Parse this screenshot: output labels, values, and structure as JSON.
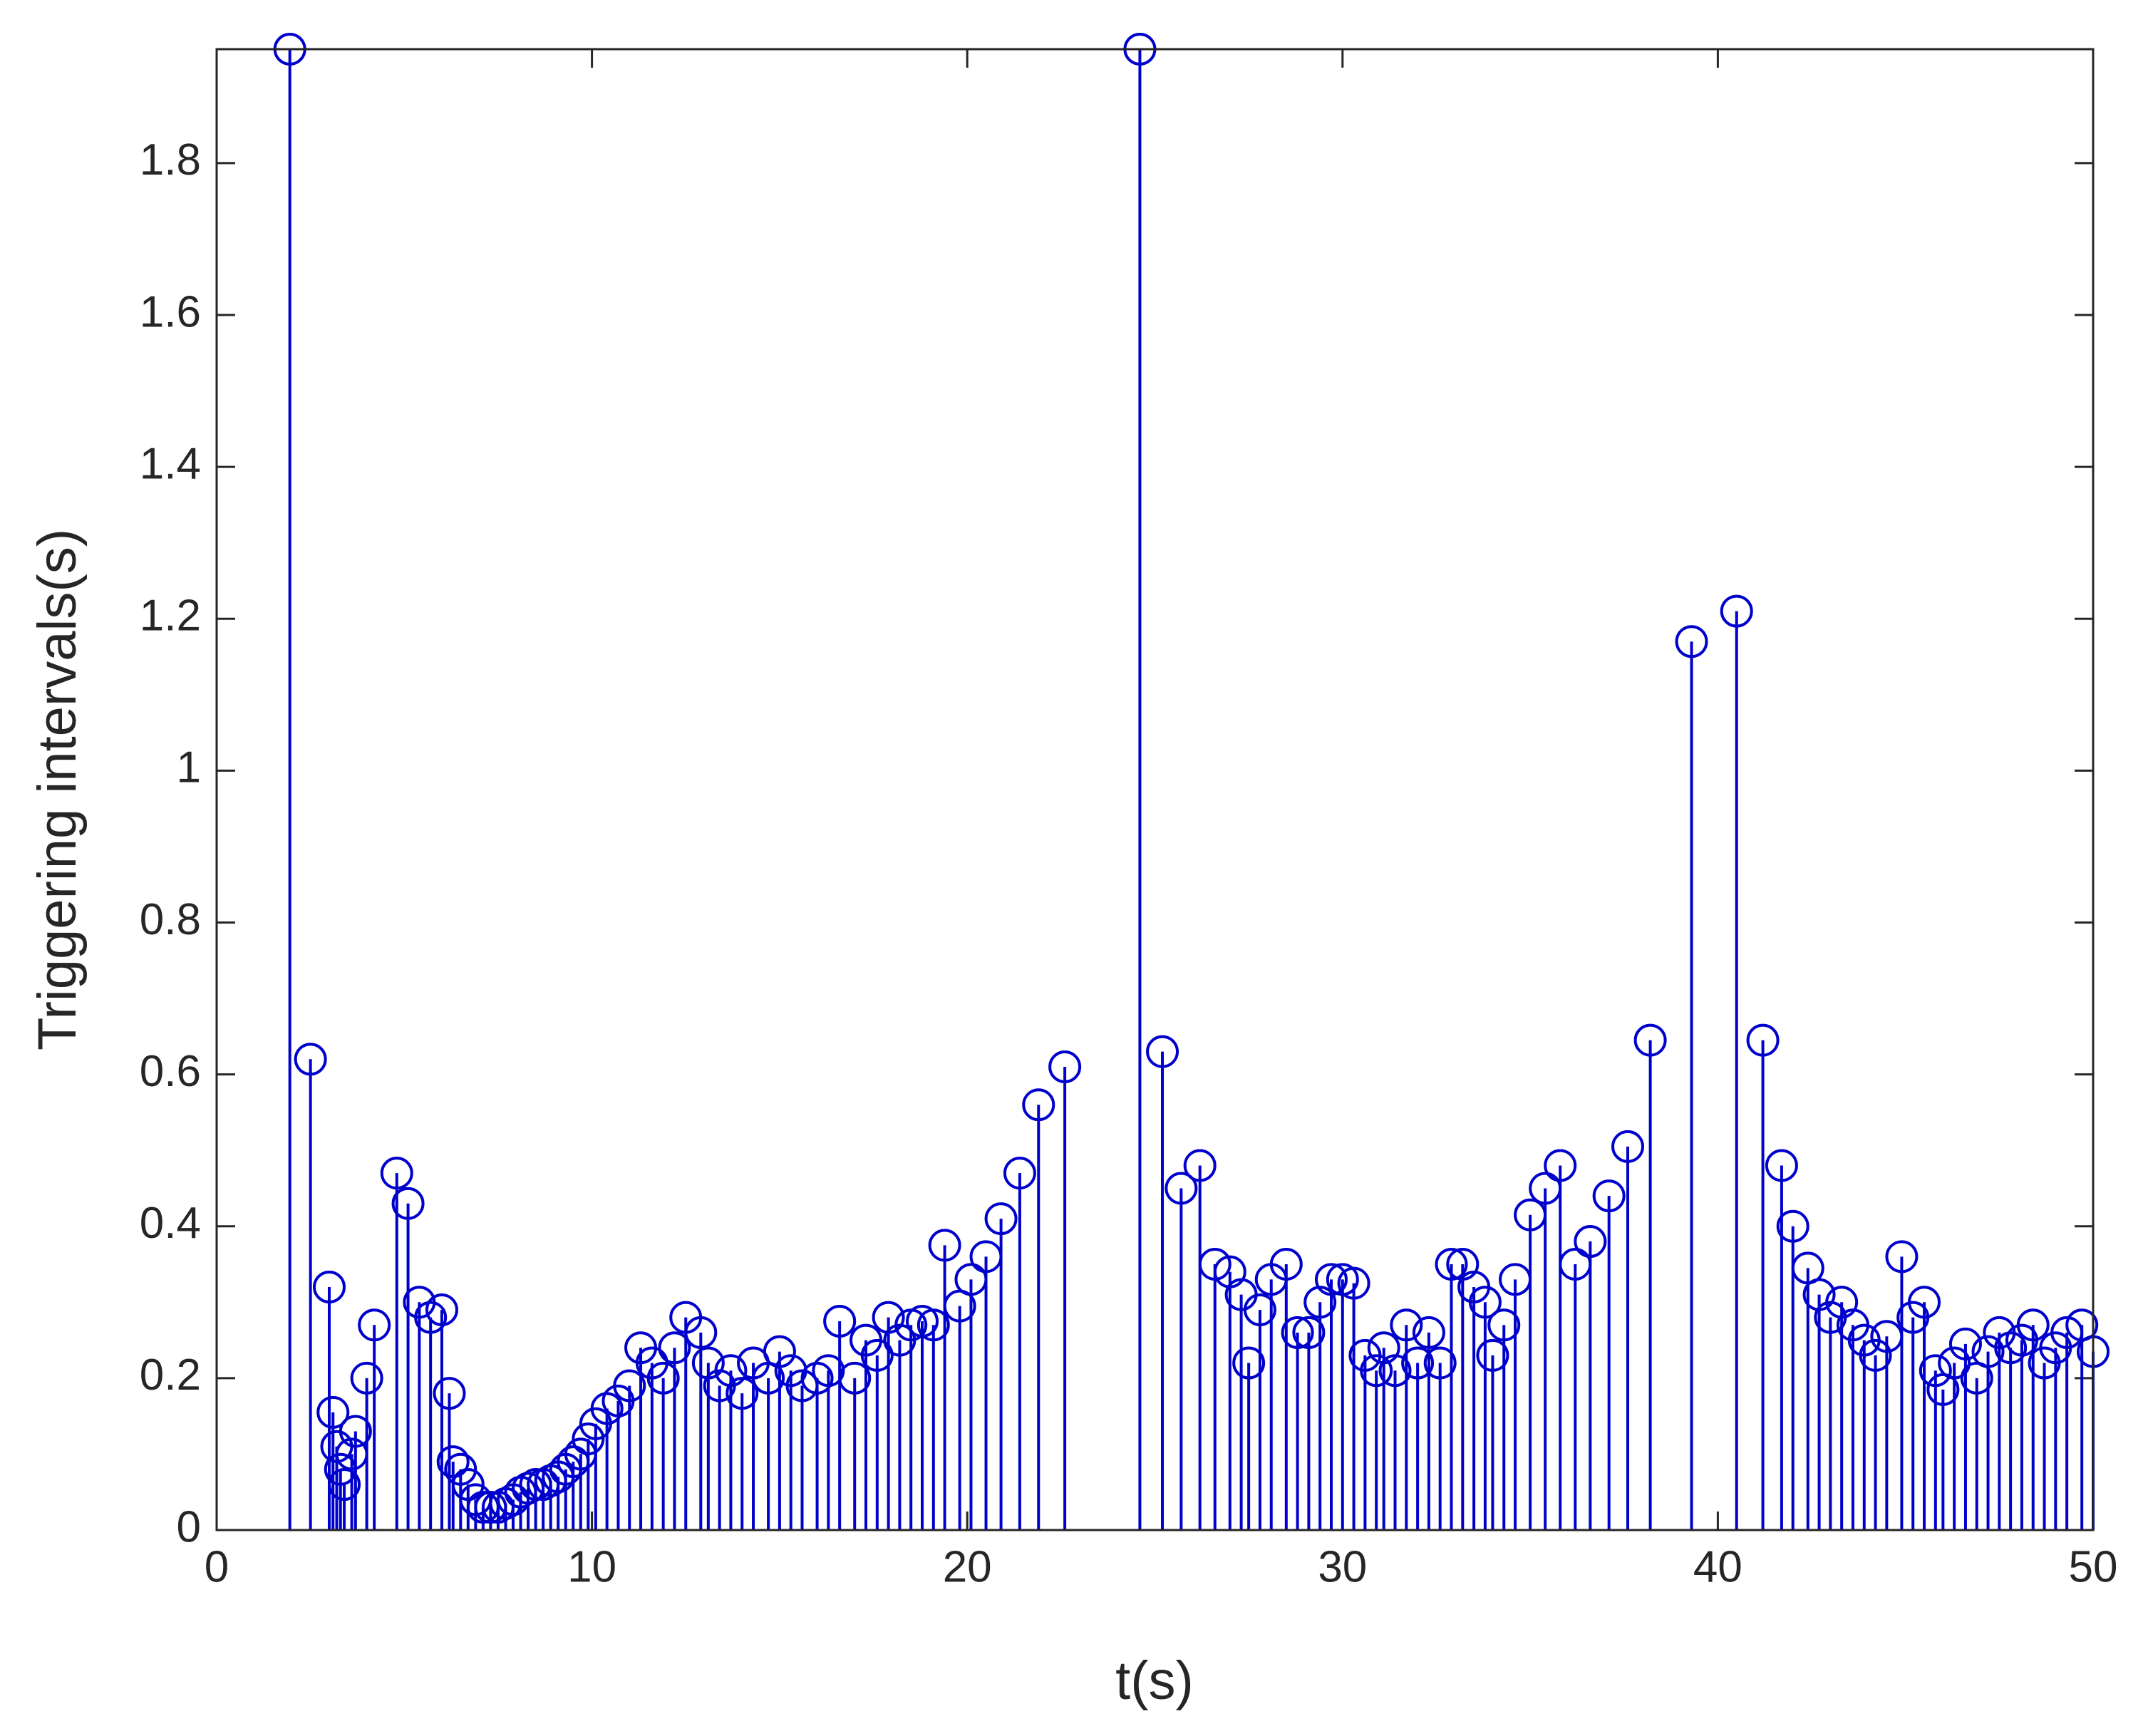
{
  "chart_data": {
    "type": "stem",
    "xlabel": "t(s)",
    "ylabel": "Triggering intervals(s)",
    "xlim": [
      0,
      50
    ],
    "xticks": [
      0,
      10,
      20,
      30,
      40,
      50
    ],
    "ylim": [
      0,
      1.95
    ],
    "yticks": [
      0,
      0.2,
      0.4,
      0.6,
      0.8,
      1,
      1.2,
      1.4,
      1.6,
      1.8
    ],
    "grid": false,
    "color": "#0000cd",
    "x": [
      1.95,
      2.5,
      3.0,
      3.1,
      3.2,
      3.3,
      3.4,
      3.6,
      3.7,
      4.0,
      4.2,
      4.8,
      5.1,
      5.4,
      5.7,
      6.0,
      6.2,
      6.3,
      6.5,
      6.7,
      6.9,
      7.1,
      7.3,
      7.5,
      7.7,
      7.9,
      8.1,
      8.3,
      8.5,
      8.7,
      8.9,
      9.1,
      9.3,
      9.5,
      9.7,
      9.9,
      10.1,
      10.4,
      10.7,
      11.0,
      11.3,
      11.6,
      11.9,
      12.2,
      12.5,
      12.9,
      13.1,
      13.4,
      13.7,
      14.0,
      14.3,
      14.7,
      15.0,
      15.3,
      15.6,
      16.0,
      16.3,
      16.6,
      17.0,
      17.3,
      17.6,
      17.9,
      18.2,
      18.5,
      18.8,
      19.1,
      19.4,
      19.8,
      20.1,
      20.5,
      20.9,
      21.4,
      21.9,
      22.6,
      24.6,
      25.2,
      25.7,
      26.2,
      26.6,
      27.0,
      27.3,
      27.5,
      27.8,
      28.1,
      28.5,
      28.8,
      29.1,
      29.4,
      29.7,
      30.0,
      30.3,
      30.6,
      30.9,
      31.1,
      31.4,
      31.7,
      32.0,
      32.3,
      32.6,
      32.9,
      33.2,
      33.5,
      33.8,
      34.0,
      34.3,
      34.6,
      35.0,
      35.4,
      35.8,
      36.2,
      36.6,
      37.1,
      37.6,
      38.2,
      39.3,
      40.5,
      41.2,
      41.7,
      42.0,
      42.4,
      42.7,
      43.0,
      43.3,
      43.6,
      43.9,
      44.2,
      44.5,
      44.9,
      45.2,
      45.5,
      45.8,
      46.0,
      46.3,
      46.6,
      46.9,
      47.2,
      47.5,
      47.8,
      48.1,
      48.4,
      48.7,
      49.0,
      49.3,
      49.7,
      50.0
    ],
    "values": [
      1.95,
      0.62,
      0.32,
      0.155,
      0.11,
      0.08,
      0.06,
      0.1,
      0.13,
      0.2,
      0.27,
      0.47,
      0.43,
      0.3,
      0.28,
      0.29,
      0.18,
      0.09,
      0.08,
      0.06,
      0.04,
      0.03,
      0.03,
      0.03,
      0.035,
      0.04,
      0.05,
      0.055,
      0.06,
      0.06,
      0.065,
      0.07,
      0.08,
      0.09,
      0.1,
      0.12,
      0.14,
      0.16,
      0.17,
      0.19,
      0.24,
      0.22,
      0.2,
      0.24,
      0.28,
      0.26,
      0.22,
      0.19,
      0.21,
      0.18,
      0.22,
      0.2,
      0.235,
      0.21,
      0.19,
      0.2,
      0.21,
      0.275,
      0.2,
      0.25,
      0.23,
      0.28,
      0.25,
      0.27,
      0.275,
      0.27,
      0.375,
      0.295,
      0.33,
      0.36,
      0.41,
      0.47,
      0.56,
      0.61,
      1.95,
      0.63,
      0.45,
      0.48,
      0.35,
      0.34,
      0.31,
      0.22,
      0.29,
      0.33,
      0.35,
      0.26,
      0.26,
      0.3,
      0.33,
      0.33,
      0.325,
      0.23,
      0.21,
      0.24,
      0.21,
      0.27,
      0.22,
      0.26,
      0.22,
      0.35,
      0.35,
      0.32,
      0.3,
      0.23,
      0.27,
      0.33,
      0.415,
      0.45,
      0.48,
      0.35,
      0.38,
      0.44,
      0.505,
      0.645,
      1.17,
      1.21,
      0.645,
      0.48,
      0.4,
      0.345,
      0.31,
      0.28,
      0.3,
      0.27,
      0.25,
      0.23,
      0.255,
      0.36,
      0.28,
      0.3,
      0.21,
      0.185,
      0.22,
      0.245,
      0.2,
      0.235,
      0.26,
      0.24,
      0.25,
      0.27,
      0.22,
      0.24,
      0.26,
      0.27,
      0.235
    ]
  }
}
